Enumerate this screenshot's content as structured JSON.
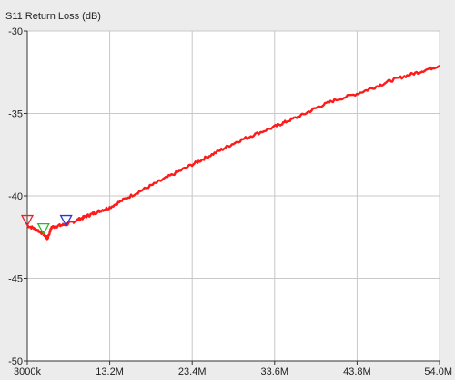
{
  "chart_data": {
    "type": "line",
    "title": "S11 Return Loss (dB)",
    "xlabel": "",
    "ylabel": "",
    "xlim": [
      3000000,
      54000000
    ],
    "ylim": [
      -50,
      -30
    ],
    "x_ticks": [
      3000000,
      13200000,
      23400000,
      33600000,
      43800000,
      54000000
    ],
    "x_tick_labels": [
      "3000k",
      "13.2M",
      "23.4M",
      "33.6M",
      "43.8M",
      "54.0M"
    ],
    "y_ticks": [
      -30,
      -35,
      -40,
      -45,
      -50
    ],
    "y_tick_labels": [
      "-30",
      "-35",
      "-40",
      "-45",
      "-50"
    ],
    "grid": true,
    "legend": "none",
    "series": [
      {
        "color": "#ff1a1a",
        "x": [
          3000000,
          4000000,
          5000000,
          5500000,
          6000000,
          7000000,
          8000000,
          9000000,
          10000000,
          11000000,
          12000000,
          13200000,
          15000000,
          17000000,
          19000000,
          21000000,
          23400000,
          25000000,
          27000000,
          29000000,
          31000000,
          33600000,
          35000000,
          37000000,
          39000000,
          41000000,
          43800000,
          46000000,
          48000000,
          50000000,
          52000000,
          54000000
        ],
        "y": [
          -41.8,
          -42.0,
          -42.3,
          -42.6,
          -41.9,
          -41.8,
          -41.7,
          -41.5,
          -41.3,
          -41.1,
          -40.9,
          -40.7,
          -40.2,
          -39.7,
          -39.2,
          -38.7,
          -38.1,
          -37.7,
          -37.2,
          -36.7,
          -36.3,
          -35.8,
          -35.5,
          -35.1,
          -34.6,
          -34.2,
          -33.8,
          -33.4,
          -33.0,
          -32.7,
          -32.4,
          -32.1
        ]
      }
    ],
    "markers": [
      {
        "name": "marker-1",
        "x": 3000000,
        "y": -41.8,
        "color": "#e8202a"
      },
      {
        "name": "marker-2",
        "x": 5000000,
        "y": -42.3,
        "color": "#2db82d"
      },
      {
        "name": "marker-3",
        "x": 7800000,
        "y": -41.8,
        "color": "#2a35d6"
      }
    ],
    "colors": {
      "plot_bg": "#ffffff",
      "page_bg": "#ececec",
      "grid": "#c8c8c8",
      "axis": "#333333"
    }
  }
}
